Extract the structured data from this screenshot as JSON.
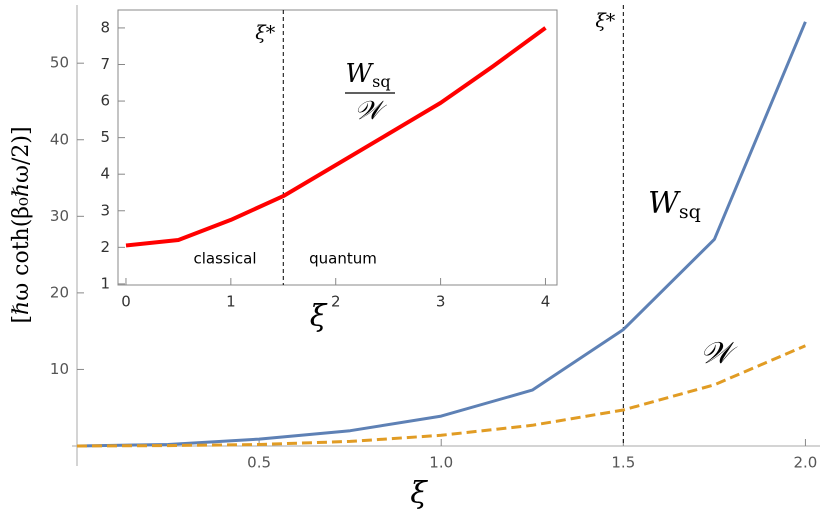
{
  "chart_data": [
    {
      "type": "line",
      "x": [
        0,
        0.25,
        0.5,
        0.75,
        1.0,
        1.25,
        1.5,
        1.75,
        2.0
      ],
      "series": [
        {
          "name": "W",
          "subscript": "sq",
          "color": "#5e81b5",
          "dashed": false,
          "values": [
            0,
            0.2,
            0.9,
            2.0,
            3.9,
            7.3,
            15.2,
            27,
            55.4
          ]
        },
        {
          "name": "𝒲",
          "color": "#e19c24",
          "dashed": true,
          "values": [
            0,
            0.05,
            0.2,
            0.6,
            1.4,
            2.7,
            4.7,
            8,
            13.1
          ]
        }
      ],
      "xlim": [
        0,
        2.04
      ],
      "ylim": [
        0,
        57.6
      ],
      "xticks": [
        0.5,
        {
          "value": 1,
          "label": "1.0"
        },
        1.5,
        {
          "value": 2,
          "label": "2.0"
        }
      ],
      "yticks": [
        10,
        20,
        30,
        40,
        50
      ],
      "x_label": "ξ",
      "y_label": "[ℏω coth(β₀ℏω/2)]",
      "vline": {
        "x": 1.5,
        "label": "ξ*"
      }
    },
    {
      "type": "line",
      "x": [
        0,
        0.5,
        1,
        1.5,
        2,
        2.5,
        3,
        3.5,
        4
      ],
      "series": [
        {
          "color": "#ff0000",
          "dashed": false,
          "values": [
            2.05,
            2.2,
            2.75,
            3.4,
            4.25,
            5.1,
            5.95,
            6.95,
            8.0
          ]
        }
      ],
      "xlim": [
        -0.076,
        4.11
      ],
      "ylim": [
        0.97,
        8.49
      ],
      "xticks": [
        0,
        1,
        2,
        3,
        4
      ],
      "yticks": [
        1,
        2,
        3,
        4,
        5,
        6,
        7,
        8
      ],
      "x_label": "ξ",
      "vline": {
        "x": 1.5,
        "label": "ξ*"
      },
      "fraction": {
        "numerator": "W",
        "numerator_subscript": "sq",
        "denominator": "𝒲"
      },
      "region_labels": [
        "classical",
        "quantum"
      ]
    }
  ]
}
